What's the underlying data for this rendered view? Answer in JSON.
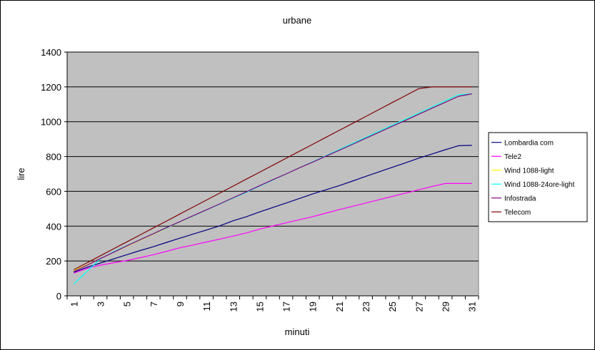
{
  "chart_data": {
    "type": "line",
    "title": "urbane",
    "xlabel": "minuti",
    "ylabel": "lire",
    "ylim": [
      0,
      1400
    ],
    "yticks": [
      0,
      200,
      400,
      600,
      800,
      1000,
      1200,
      1400
    ],
    "x": [
      1,
      2,
      3,
      4,
      5,
      6,
      7,
      8,
      9,
      10,
      11,
      12,
      13,
      14,
      15,
      16,
      17,
      18,
      19,
      20,
      21,
      22,
      23,
      24,
      25,
      26,
      27,
      28,
      29,
      30,
      31
    ],
    "xtick_labels": [
      "1",
      "3",
      "5",
      "7",
      "9",
      "11",
      "13",
      "15",
      "17",
      "19",
      "21",
      "23",
      "25",
      "27",
      "29",
      "31"
    ],
    "grid": true,
    "legend_position": "right",
    "plot_background": "#c0c0c0",
    "series": [
      {
        "name": "Lombardia com",
        "color": "#000080",
        "values": [
          135,
          164,
          188,
          212,
          236,
          260,
          282,
          307,
          331,
          355,
          378,
          402,
          431,
          454,
          482,
          507,
          533,
          559,
          585,
          609,
          633,
          659,
          686,
          712,
          738,
          764,
          791,
          815,
          839,
          862,
          864
        ]
      },
      {
        "name": "Tele2",
        "color": "#ff00ff",
        "values": [
          130,
          158,
          176,
          190,
          203,
          219,
          236,
          256,
          276,
          292,
          309,
          326,
          343,
          361,
          383,
          401,
          419,
          437,
          455,
          475,
          495,
          514,
          533,
          552,
          571,
          590,
          609,
          628,
          645,
          645,
          645
        ]
      },
      {
        "name": "Wind 1088-light",
        "color": "#ffff00",
        "values": [
          145,
          178,
          214,
          250,
          285,
          320,
          355,
          389,
          424,
          458,
          493,
          527,
          561,
          594,
          630,
          665,
          700,
          735,
          770,
          805,
          840,
          875,
          910,
          945,
          980,
          1015,
          1050,
          1085,
          1120,
          1155,
          1160
        ]
      },
      {
        "name": "Wind 1088-24ore-light",
        "color": "#00ffff",
        "values": [
          68,
          141,
          212,
          253,
          288,
          322,
          357,
          390,
          425,
          459,
          493,
          527,
          561,
          594,
          630,
          665,
          700,
          735,
          770,
          805,
          840,
          875,
          910,
          945,
          980,
          1015,
          1050,
          1085,
          1120,
          1155,
          1160
        ]
      },
      {
        "name": "Infostrada",
        "color": "#800080",
        "values": [
          140,
          176,
          214,
          250,
          287,
          322,
          357,
          392,
          426,
          460,
          494,
          528,
          563,
          597,
          632,
          667,
          700,
          735,
          768,
          802,
          836,
          870,
          905,
          939,
          974,
          1008,
          1043,
          1078,
          1112,
          1146,
          1160
        ]
      },
      {
        "name": "Telecom",
        "color": "#800000",
        "values": [
          150,
          190,
          230,
          270,
          310,
          350,
          390,
          430,
          470,
          510,
          550,
          590,
          630,
          670,
          710,
          750,
          790,
          830,
          870,
          910,
          950,
          990,
          1030,
          1070,
          1110,
          1150,
          1190,
          1200,
          1200,
          1200,
          1200
        ]
      }
    ]
  }
}
